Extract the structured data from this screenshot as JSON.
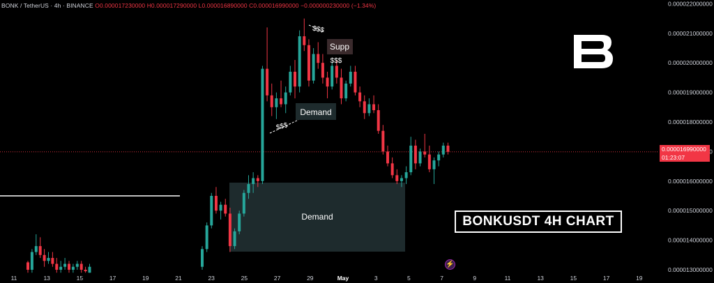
{
  "header": {
    "symbol": "BONK / TetherUS · 4h · BINANCE",
    "open": "O0.000017230000",
    "high": "H0.000017290000",
    "low": "L0.000016890000",
    "close": "C0.000016990000",
    "change": "−0.000000230000 (−1.34%)"
  },
  "price_label": {
    "price": "0.000016990000",
    "countdown": "01:23:07"
  },
  "title_box": "BONKUSDT 4H CHART",
  "colors": {
    "up": "#26a69a",
    "down": "#f23645",
    "zone": "#1e2b2d",
    "background": "#000000"
  },
  "chart_data": {
    "type": "candlestick",
    "y_axis": {
      "labels": [
        "0.000013000000",
        "0.000014000000",
        "0.000015000000",
        "0.000016000000",
        "0.000017000000",
        "0.000018000000",
        "0.000019000000",
        "0.000020000000",
        "0.000021000000",
        "0.000022000000"
      ],
      "min": 1.29e-05,
      "max": 2.22e-05
    },
    "x_axis": {
      "labels": [
        "11",
        "13",
        "15",
        "17",
        "19",
        "21",
        "23",
        "25",
        "27",
        "29",
        "May",
        "3",
        "5",
        "7",
        "9",
        "11",
        "13",
        "15",
        "17",
        "19"
      ]
    },
    "ohlc": [
      [
        1.325e-05,
        1.33e-05,
        1.29e-05,
        1.3e-05
      ],
      [
        1.3e-05,
        1.37e-05,
        1.29e-05,
        1.36e-05
      ],
      [
        1.36e-05,
        1.42e-05,
        1.35e-05,
        1.38e-05
      ],
      [
        1.38e-05,
        1.41e-05,
        1.34e-05,
        1.35e-05
      ],
      [
        1.35e-05,
        1.37e-05,
        1.31e-05,
        1.33e-05
      ],
      [
        1.33e-05,
        1.36e-05,
        1.32e-05,
        1.34e-05
      ],
      [
        1.34e-05,
        1.36e-05,
        1.31e-05,
        1.32e-05
      ],
      [
        1.32e-05,
        1.34e-05,
        1.29e-05,
        1.3e-05
      ],
      [
        1.3e-05,
        1.33e-05,
        1.29e-05,
        1.31e-05
      ],
      [
        1.31e-05,
        1.34e-05,
        1.3e-05,
        1.32e-05
      ],
      [
        1.32e-05,
        1.33e-05,
        1.29e-05,
        1.3e-05
      ],
      [
        1.3e-05,
        1.32e-05,
        1.29e-05,
        1.31e-05
      ],
      [
        1.31e-05,
        1.33e-05,
        1.3e-05,
        1.32e-05
      ],
      [
        1.32e-05,
        1.33e-05,
        1.29e-05,
        1.3e-05
      ],
      [
        1.3e-05,
        1.31e-05,
        1.29e-05,
        1.295e-05
      ],
      [
        1.29e-05,
        1.32e-05,
        1.29e-05,
        1.31e-05
      ],
      [
        1.31e-05,
        1.38e-05,
        1.3e-05,
        1.37e-05
      ],
      [
        1.37e-05,
        1.46e-05,
        1.36e-05,
        1.45e-05
      ],
      [
        1.45e-05,
        1.56e-05,
        1.44e-05,
        1.55e-05
      ],
      [
        1.55e-05,
        1.58e-05,
        1.49e-05,
        1.5e-05
      ],
      [
        1.5e-05,
        1.53e-05,
        1.47e-05,
        1.52e-05
      ],
      [
        1.52e-05,
        1.54e-05,
        1.48e-05,
        1.49e-05
      ],
      [
        1.49e-05,
        1.51e-05,
        1.36e-05,
        1.38e-05
      ],
      [
        1.38e-05,
        1.44e-05,
        1.37e-05,
        1.43e-05
      ],
      [
        1.43e-05,
        1.5e-05,
        1.42e-05,
        1.49e-05
      ],
      [
        1.49e-05,
        1.57e-05,
        1.48e-05,
        1.56e-05
      ],
      [
        1.56e-05,
        1.62e-05,
        1.54e-05,
        1.59e-05
      ],
      [
        1.59e-05,
        1.63e-05,
        1.56e-05,
        1.61e-05
      ],
      [
        1.61e-05,
        1.62e-05,
        1.58e-05,
        1.6e-05
      ],
      [
        1.6e-05,
        1.99e-05,
        1.59e-05,
        1.98e-05
      ],
      [
        1.98e-05,
        2.12e-05,
        1.87e-05,
        1.89e-05
      ],
      [
        1.89e-05,
        1.93e-05,
        1.82e-05,
        1.85e-05
      ],
      [
        1.85e-05,
        1.9e-05,
        1.81e-05,
        1.88e-05
      ],
      [
        1.88e-05,
        1.94e-05,
        1.85e-05,
        1.86e-05
      ],
      [
        1.86e-05,
        1.92e-05,
        1.83e-05,
        1.9e-05
      ],
      [
        1.9e-05,
        1.99e-05,
        1.89e-05,
        1.97e-05
      ],
      [
        1.97e-05,
        2.01e-05,
        1.88e-05,
        1.92e-05
      ],
      [
        1.92e-05,
        2.11e-05,
        1.9e-05,
        2.09e-05
      ],
      [
        2.09e-05,
        2.15e-05,
        2.04e-05,
        2.06e-05
      ],
      [
        2.06e-05,
        2.08e-05,
        1.92e-05,
        1.94e-05
      ],
      [
        1.94e-05,
        2.05e-05,
        1.93e-05,
        2.03e-05
      ],
      [
        2.03e-05,
        2.07e-05,
        1.98e-05,
        2e-05
      ],
      [
        2e-05,
        2.03e-05,
        1.93e-05,
        1.95e-05
      ],
      [
        1.95e-05,
        1.97e-05,
        1.88e-05,
        1.92e-05
      ],
      [
        1.92e-05,
        2e-05,
        1.91e-05,
        1.99e-05
      ],
      [
        1.99e-05,
        2.01e-05,
        1.93e-05,
        1.95e-05
      ],
      [
        1.95e-05,
        1.98e-05,
        1.86e-05,
        1.88e-05
      ],
      [
        1.88e-05,
        1.94e-05,
        1.87e-05,
        1.93e-05
      ],
      [
        1.93e-05,
        1.99e-05,
        1.92e-05,
        1.97e-05
      ],
      [
        1.97e-05,
        1.99e-05,
        1.89e-05,
        1.9e-05
      ],
      [
        1.9e-05,
        1.92e-05,
        1.85e-05,
        1.87e-05
      ],
      [
        1.87e-05,
        1.89e-05,
        1.81e-05,
        1.83e-05
      ],
      [
        1.83e-05,
        1.88e-05,
        1.82e-05,
        1.86e-05
      ],
      [
        1.86e-05,
        1.89e-05,
        1.83e-05,
        1.84e-05
      ],
      [
        1.84e-05,
        1.86e-05,
        1.76e-05,
        1.77e-05
      ],
      [
        1.77e-05,
        1.79e-05,
        1.69e-05,
        1.7e-05
      ],
      [
        1.7e-05,
        1.72e-05,
        1.65e-05,
        1.66e-05
      ],
      [
        1.66e-05,
        1.68e-05,
        1.61e-05,
        1.62e-05
      ],
      [
        1.62e-05,
        1.64e-05,
        1.59e-05,
        1.6e-05
      ],
      [
        1.6e-05,
        1.62e-05,
        1.58e-05,
        1.61e-05
      ],
      [
        1.61e-05,
        1.65e-05,
        1.59e-05,
        1.63e-05
      ],
      [
        1.63e-05,
        1.75e-05,
        1.62e-05,
        1.72e-05
      ],
      [
        1.72e-05,
        1.74e-05,
        1.64e-05,
        1.66e-05
      ],
      [
        1.66e-05,
        1.71e-05,
        1.65e-05,
        1.7e-05
      ],
      [
        1.7e-05,
        1.76e-05,
        1.68e-05,
        1.69e-05
      ],
      [
        1.69e-05,
        1.72e-05,
        1.63e-05,
        1.64e-05
      ],
      [
        1.64e-05,
        1.68e-05,
        1.59e-05,
        1.67e-05
      ],
      [
        1.67e-05,
        1.7e-05,
        1.65e-05,
        1.69e-05
      ],
      [
        1.69e-05,
        1.73e-05,
        1.68e-05,
        1.72e-05
      ],
      [
        1.72e-05,
        1.73e-05,
        1.69e-05,
        1.699e-05
      ]
    ],
    "horizontal_line": 1.55e-05,
    "zones": [
      {
        "label": "Demand",
        "from": 1.37e-05,
        "to": 1.59e-05
      },
      {
        "label": "Demand",
        "from": 1.81e-05,
        "to": 1.85e-05
      },
      {
        "label": "Supp",
        "from": 1.99e-05,
        "to": 2.04e-05
      }
    ],
    "annotations": [
      "$$$",
      "$$$",
      "$$$"
    ]
  }
}
